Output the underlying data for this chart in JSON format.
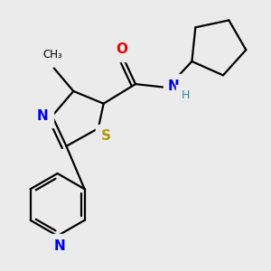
{
  "bg_color": "#ebebeb",
  "atom_colors": {
    "C": "#000000",
    "N": "#0000ee",
    "S": "#b8960c",
    "O": "#ee0000",
    "H": "#2e8b8b"
  },
  "bond_color": "#000000",
  "bond_width": 1.6,
  "font_size_atom": 11,
  "font_size_small": 9
}
